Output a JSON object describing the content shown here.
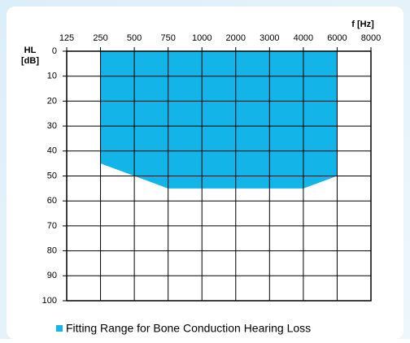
{
  "chart_data": {
    "type": "area",
    "x_label": "f [Hz]",
    "y_label": "HL",
    "y_unit": "[dB]",
    "categories": [
      "125",
      "250",
      "500",
      "750",
      "1000",
      "2000",
      "3000",
      "4000",
      "6000",
      "8000"
    ],
    "series": [
      {
        "name": "Fitting Range for Bone Conduction Hearing Loss",
        "color": "#13b5e8",
        "values": [
          null,
          45,
          50,
          55,
          55,
          55,
          55,
          55,
          50,
          null
        ]
      }
    ],
    "ylim": [
      0,
      100
    ],
    "yticks": [
      0,
      10,
      20,
      30,
      40,
      50,
      60,
      70,
      80,
      90,
      100
    ],
    "y_inverted": true,
    "grid": true,
    "legend": "bottom"
  }
}
